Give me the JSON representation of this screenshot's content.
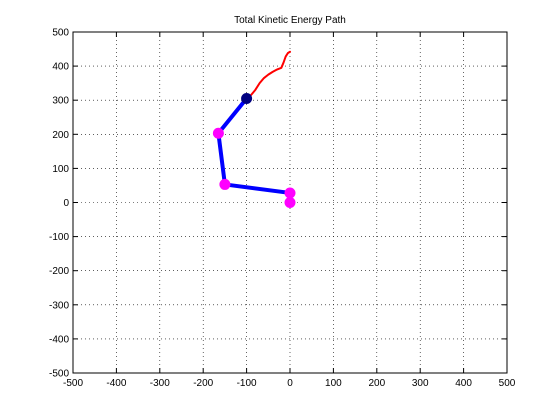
{
  "chart_data": {
    "type": "line",
    "title": "Total Kinetic Energy Path",
    "xlabel": "",
    "ylabel": "",
    "xlim": [
      -500,
      500
    ],
    "ylim": [
      -500,
      500
    ],
    "x_ticks": [
      -500,
      -400,
      -300,
      -200,
      -100,
      0,
      100,
      200,
      300,
      400,
      500
    ],
    "y_ticks": [
      -500,
      -400,
      -300,
      -200,
      -100,
      0,
      100,
      200,
      300,
      400,
      500
    ],
    "grid": true,
    "series": [
      {
        "color": "#0000ff",
        "style": "thick-line",
        "x": [
          -100,
          -165,
          -150,
          0,
          0
        ],
        "y": [
          305,
          203,
          53,
          28,
          0
        ]
      },
      {
        "color": "#ff0000",
        "style": "thin-line",
        "x": [
          -100,
          -90,
          -80,
          -70,
          -60,
          -50,
          -40,
          -30,
          -20,
          -15,
          -10,
          -5,
          0
        ],
        "y": [
          305,
          315,
          330,
          350,
          365,
          375,
          383,
          390,
          395,
          410,
          428,
          438,
          442
        ]
      },
      {
        "color": "#ff00ff",
        "style": "marker-circle",
        "x": [
          -165,
          -150,
          0,
          0
        ],
        "y": [
          203,
          53,
          28,
          0
        ]
      },
      {
        "color": "#000080",
        "style": "marker-circle",
        "x": [
          -100
        ],
        "y": [
          305
        ]
      }
    ]
  }
}
